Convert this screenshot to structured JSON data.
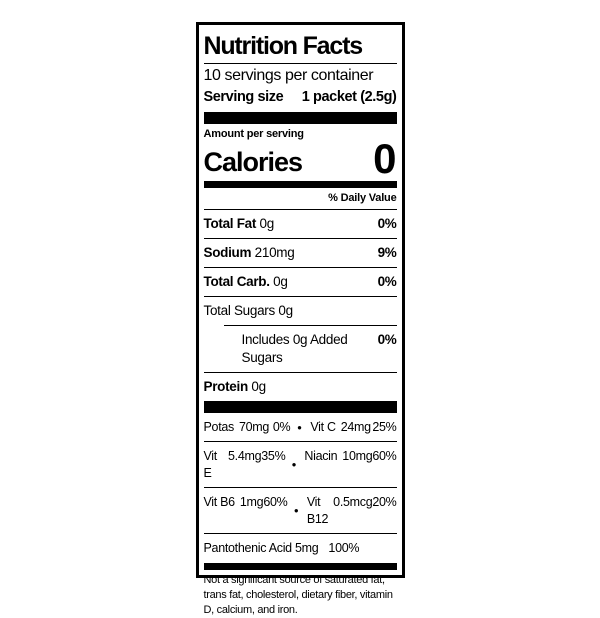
{
  "label": {
    "title": "Nutrition Facts",
    "servings_per_container": "10 servings per container",
    "serving_size": {
      "label": "Serving size",
      "value": "1 packet (2.5g)"
    },
    "amount_per_serving": "Amount per serving",
    "calories": {
      "label": "Calories",
      "value": "0"
    },
    "daily_value_header": "% Daily Value",
    "rows": [
      {
        "name": "Total Fat",
        "amount": "0g",
        "pct": "0%"
      },
      {
        "name": "Sodium",
        "amount": "210mg",
        "pct": "9%"
      },
      {
        "name": "Total Carb.",
        "amount": "0g",
        "pct": "0%"
      },
      {
        "name": "Total Sugars",
        "amount": "0g",
        "pct": ""
      },
      {
        "name": "Includes 0g Added Sugars",
        "amount": "",
        "pct": "0%"
      },
      {
        "name": "Protein",
        "amount": "0g",
        "pct": ""
      }
    ],
    "micro_bullet": "●",
    "micros": [
      {
        "left": {
          "name": "Potas",
          "amount": "70mg",
          "pct": "0%"
        },
        "right": {
          "name": "Vit C",
          "amount": "24mg",
          "pct": "25%"
        }
      },
      {
        "left": {
          "name": "Vit E",
          "amount": "5.4mg",
          "pct": "35%"
        },
        "right": {
          "name": "Niacin",
          "amount": "10mg",
          "pct": "60%"
        }
      },
      {
        "left": {
          "name": "Vit B6",
          "amount": "1mg",
          "pct": "60%"
        },
        "right": {
          "name": "Vit B12",
          "amount": "0.5mcg",
          "pct": "20%"
        }
      }
    ],
    "pantothenic": {
      "name": "Pantothenic Acid 5mg",
      "pct": "100%"
    },
    "footnote": "Not a significant source of saturated fat, trans fat, cholesterol, dietary fiber, vitamin D, calcium, and iron."
  }
}
